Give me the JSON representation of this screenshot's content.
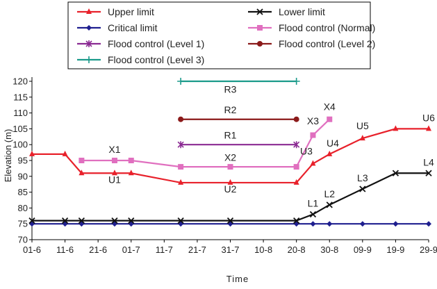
{
  "chart_data": {
    "type": "line",
    "title": "",
    "xlabel": "Time",
    "ylabel": "Elevation (m)",
    "ylim": [
      70,
      120
    ],
    "y_ticks": [
      70,
      75,
      80,
      85,
      90,
      95,
      100,
      105,
      110,
      115,
      120
    ],
    "grid": false,
    "legend_position": "top",
    "categories": [
      "01-6",
      "11-6",
      "21-6",
      "01-7",
      "11-7",
      "21-7",
      "31-7",
      "10-8",
      "20-8",
      "30-8",
      "09-9",
      "19-9",
      "29-9"
    ],
    "series": [
      {
        "name": "Upper limit",
        "color": "#e8212b",
        "marker": "triangle",
        "points": [
          {
            "x": "01-6",
            "y": 97
          },
          {
            "x": "11-6",
            "y": 97
          },
          {
            "x": "16-6",
            "y": 91
          },
          {
            "x": "26-6",
            "y": 91
          },
          {
            "x": "01-7",
            "y": 91
          },
          {
            "x": "16-7",
            "y": 88
          },
          {
            "x": "31-7",
            "y": 88
          },
          {
            "x": "20-8",
            "y": 88
          },
          {
            "x": "25-8",
            "y": 94
          },
          {
            "x": "30-8",
            "y": 97
          },
          {
            "x": "09-9",
            "y": 102
          },
          {
            "x": "19-9",
            "y": 105
          },
          {
            "x": "29-9",
            "y": 105
          }
        ]
      },
      {
        "name": "Lower limit",
        "color": "#111111",
        "marker": "x",
        "points": [
          {
            "x": "01-6",
            "y": 76
          },
          {
            "x": "11-6",
            "y": 76
          },
          {
            "x": "16-6",
            "y": 76
          },
          {
            "x": "26-6",
            "y": 76
          },
          {
            "x": "01-7",
            "y": 76
          },
          {
            "x": "16-7",
            "y": 76
          },
          {
            "x": "31-7",
            "y": 76
          },
          {
            "x": "20-8",
            "y": 76
          },
          {
            "x": "25-8",
            "y": 78
          },
          {
            "x": "30-8",
            "y": 81
          },
          {
            "x": "09-9",
            "y": 86
          },
          {
            "x": "19-9",
            "y": 91
          },
          {
            "x": "29-9",
            "y": 91
          }
        ]
      },
      {
        "name": "Critical limit",
        "color": "#1f1f8f",
        "marker": "diamond",
        "points": [
          {
            "x": "01-6",
            "y": 75
          },
          {
            "x": "11-6",
            "y": 75
          },
          {
            "x": "16-6",
            "y": 75
          },
          {
            "x": "26-6",
            "y": 75
          },
          {
            "x": "01-7",
            "y": 75
          },
          {
            "x": "16-7",
            "y": 75
          },
          {
            "x": "31-7",
            "y": 75
          },
          {
            "x": "20-8",
            "y": 75
          },
          {
            "x": "25-8",
            "y": 75
          },
          {
            "x": "30-8",
            "y": 75
          },
          {
            "x": "09-9",
            "y": 75
          },
          {
            "x": "19-9",
            "y": 75
          },
          {
            "x": "29-9",
            "y": 75
          }
        ]
      },
      {
        "name": "Flood control (Normal)",
        "color": "#e06fbf",
        "marker": "square",
        "points": [
          {
            "x": "16-6",
            "y": 95
          },
          {
            "x": "26-6",
            "y": 95
          },
          {
            "x": "01-7",
            "y": 95
          },
          {
            "x": "16-7",
            "y": 93
          },
          {
            "x": "31-7",
            "y": 93
          },
          {
            "x": "20-8",
            "y": 93
          },
          {
            "x": "25-8",
            "y": 103
          },
          {
            "x": "30-8",
            "y": 108
          }
        ]
      },
      {
        "name": "Flood control (Level 1)",
        "color": "#8a2a92",
        "marker": "star",
        "points": [
          {
            "x": "16-7",
            "y": 100
          },
          {
            "x": "20-8",
            "y": 100
          }
        ]
      },
      {
        "name": "Flood control (Level 2)",
        "color": "#8b1a1a",
        "marker": "circle",
        "points": [
          {
            "x": "16-7",
            "y": 108
          },
          {
            "x": "20-8",
            "y": 108
          }
        ]
      },
      {
        "name": "Flood control (Level 3)",
        "color": "#1a9a8a",
        "marker": "plus",
        "points": [
          {
            "x": "16-7",
            "y": 120
          },
          {
            "x": "20-8",
            "y": 120
          }
        ]
      }
    ],
    "annotations": [
      {
        "text": "X1",
        "x": "26-6",
        "y": 98.5
      },
      {
        "text": "U1",
        "x": "26-6",
        "y": 89
      },
      {
        "text": "X2",
        "x": "31-7",
        "y": 96
      },
      {
        "text": "U2",
        "x": "31-7",
        "y": 86
      },
      {
        "text": "R1",
        "x": "31-7",
        "y": 103
      },
      {
        "text": "R2",
        "x": "31-7",
        "y": 111
      },
      {
        "text": "R3",
        "x": "31-7",
        "y": 117.5
      },
      {
        "text": "X3",
        "x": "25-8",
        "y": 107.5
      },
      {
        "text": "X4",
        "x": "30-8",
        "y": 112
      },
      {
        "text": "U3",
        "x": "23-8",
        "y": 98
      },
      {
        "text": "U4",
        "x": "31-8",
        "y": 100.5
      },
      {
        "text": "U5",
        "x": "09-9",
        "y": 106
      },
      {
        "text": "U6",
        "x": "29-9",
        "y": 108.5
      },
      {
        "text": "L1",
        "x": "25-8",
        "y": 81.5
      },
      {
        "text": "L2",
        "x": "30-8",
        "y": 84.5
      },
      {
        "text": "L3",
        "x": "09-9",
        "y": 89.5
      },
      {
        "text": "L4",
        "x": "29-9",
        "y": 94.5
      }
    ],
    "legend": {
      "rows": [
        [
          "Upper limit",
          "Lower limit"
        ],
        [
          "Critical limit",
          "Flood control (Normal)"
        ],
        [
          "Flood control (Level 1)",
          "Flood control (Level 2)"
        ],
        [
          "Flood control (Level 3)"
        ]
      ]
    }
  }
}
